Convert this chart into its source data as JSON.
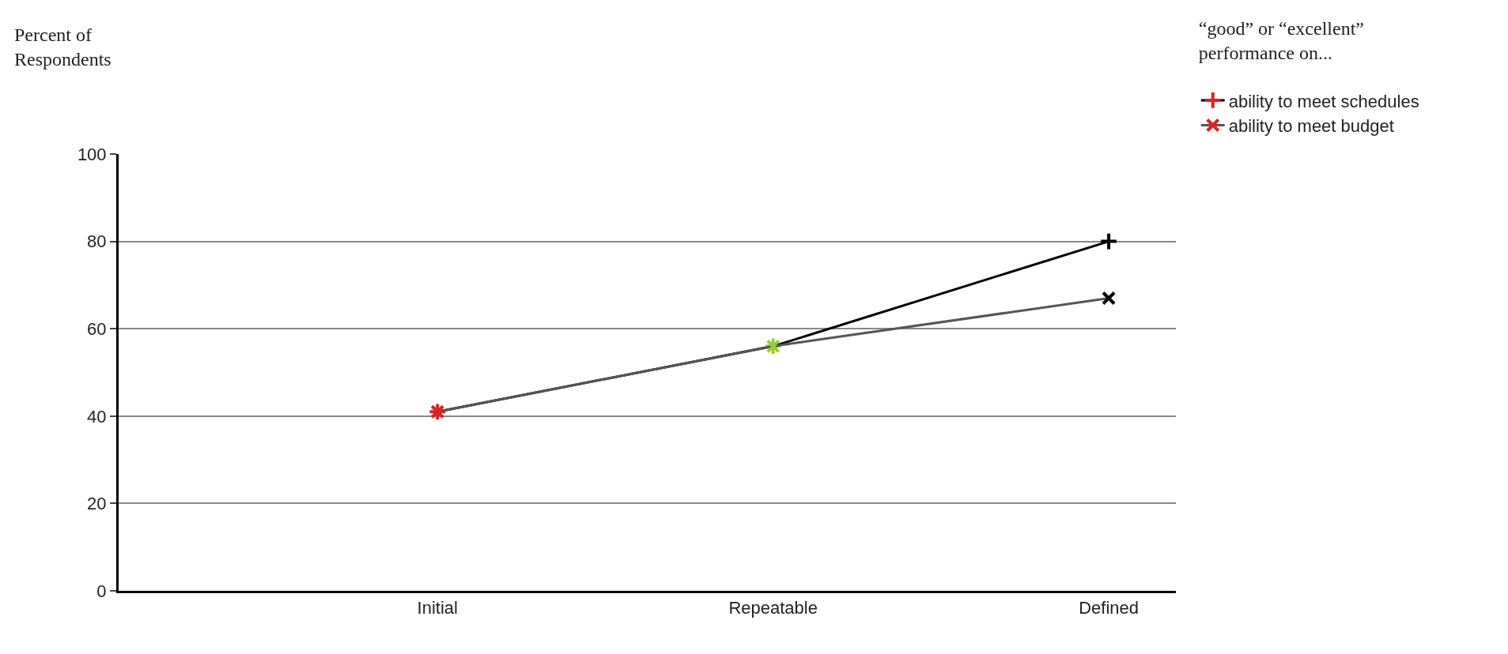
{
  "chart_data": {
    "type": "line",
    "ylabel": "Percent of Respondents",
    "legend_title": "“good” or “excellent” performance on...",
    "categories": [
      "Initial",
      "Repeatable",
      "Defined"
    ],
    "series": [
      {
        "name": "ability to meet schedules",
        "color": "#000000",
        "marker": "cross",
        "colors": [
          "#e02020",
          "#9acd32",
          "#000000"
        ],
        "values": [
          41,
          56,
          80
        ]
      },
      {
        "name": "ability to meet budget",
        "color": "#555555",
        "marker": "x",
        "colors": [
          "#e02020",
          "#9acd32",
          "#000000"
        ],
        "values": [
          41,
          56,
          67
        ]
      }
    ],
    "ylim": [
      0,
      100
    ],
    "yticks": [
      0,
      20,
      40,
      60,
      80,
      100
    ],
    "grid": "y",
    "legend": "top right",
    "line_style": "solid"
  }
}
